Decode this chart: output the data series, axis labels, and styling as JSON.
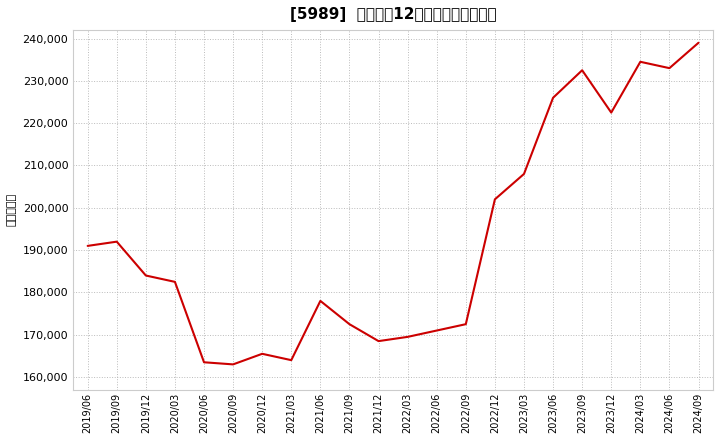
{
  "title": "[5989]  売上高の12か月移動合計の推移",
  "ylabel": "（百万円）",
  "line_color": "#cc0000",
  "background_color": "#ffffff",
  "plot_bg_color": "#ffffff",
  "grid_color": "#aaaaaa",
  "dates": [
    "2019/06",
    "2019/09",
    "2019/12",
    "2020/03",
    "2020/06",
    "2020/09",
    "2020/12",
    "2021/03",
    "2021/06",
    "2021/09",
    "2021/12",
    "2022/03",
    "2022/06",
    "2022/09",
    "2022/12",
    "2023/03",
    "2023/06",
    "2023/09",
    "2023/12",
    "2024/03",
    "2024/06",
    "2024/09"
  ],
  "values": [
    191000,
    192000,
    184000,
    182500,
    163500,
    163000,
    165500,
    164000,
    178000,
    172500,
    168500,
    169500,
    171000,
    172500,
    202000,
    208000,
    226000,
    232500,
    222500,
    234500,
    233000,
    239000
  ],
  "yticks": [
    160000,
    170000,
    180000,
    190000,
    200000,
    210000,
    220000,
    230000,
    240000
  ],
  "ylim": [
    157000,
    242000
  ],
  "title_fontsize": 11,
  "tick_fontsize": 8,
  "ylabel_fontsize": 8
}
